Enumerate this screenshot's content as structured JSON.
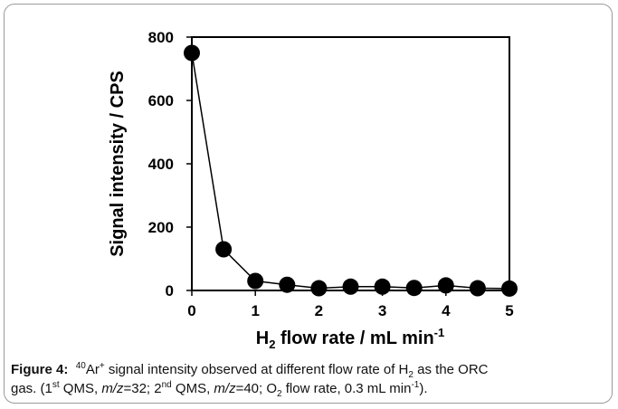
{
  "chart_data": {
    "type": "line",
    "x": [
      0,
      0.5,
      1,
      1.5,
      2,
      2.5,
      3,
      3.5,
      4,
      4.5,
      5
    ],
    "series": [
      {
        "color": "#000000",
        "values": [
          750,
          130,
          30,
          18,
          7,
          12,
          12,
          8,
          16,
          7,
          6
        ]
      }
    ],
    "xlim": [
      0,
      5
    ],
    "xticks": [
      0,
      1,
      2,
      3,
      4,
      5
    ],
    "ylim": [
      0,
      800
    ],
    "yticks": [
      0,
      200,
      400,
      600,
      800
    ],
    "xlabel": [
      "H",
      "2",
      " flow rate / mL min",
      "-1"
    ],
    "ylabel": "Signal intensity / CPS"
  },
  "caption": {
    "lines": [
      [
        "Figure 4:",
        "40",
        "Ar",
        "+",
        " signal intensity observed at different flow rate of H",
        "2",
        " as the ORC"
      ],
      [
        "gas. (1",
        "st",
        " QMS, ",
        "m/z",
        "=32; 2",
        "nd",
        " QMS, ",
        "m/z",
        "=40; O",
        "2",
        " flow rate, 0.3 mL min",
        "-1",
        ")."
      ]
    ]
  }
}
